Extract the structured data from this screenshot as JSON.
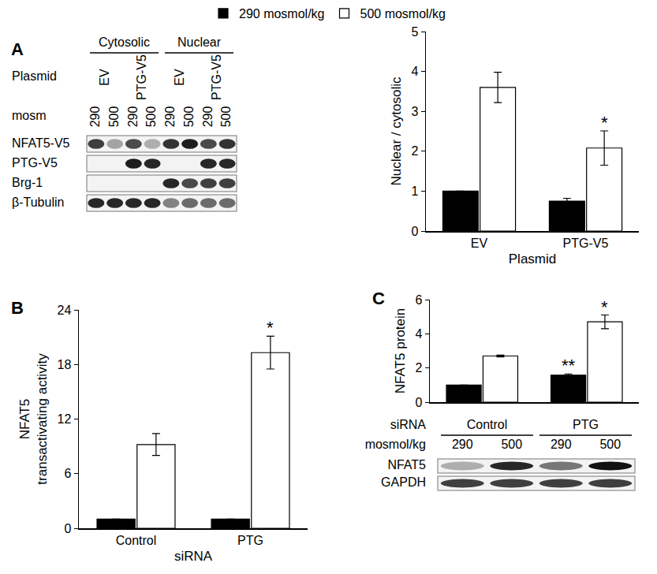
{
  "chart_data": [
    {
      "panel": "A",
      "type": "bar",
      "grid": false,
      "categories": [
        "EV",
        "PTG-V5"
      ],
      "x_label": "Plasmid",
      "y_label": "Nuclear / cytosolic",
      "ylim": [
        0,
        5
      ],
      "yticks": [
        0,
        1,
        2,
        3,
        4,
        5
      ],
      "series": [
        {
          "name": "290 mosmol/kg",
          "color": "#000000",
          "values": [
            1,
            0.75
          ],
          "errors": [
            0,
            0.07
          ]
        },
        {
          "name": "500 mosmol/kg",
          "color": "#ffffff",
          "values": [
            3.6,
            2.08
          ],
          "errors": [
            0.38,
            0.43
          ]
        }
      ],
      "annotations": [
        {
          "text": "*",
          "series": "500 mosmol/kg",
          "category": "PTG-V5"
        }
      ]
    },
    {
      "panel": "B",
      "type": "bar",
      "grid": false,
      "categories": [
        "Control",
        "PTG"
      ],
      "x_label": "siRNA",
      "y_label": [
        "NFAT5",
        "transactivating activity"
      ],
      "ylim": [
        0,
        24
      ],
      "yticks": [
        0,
        6,
        12,
        18,
        24
      ],
      "series": [
        {
          "name": "290 mosmol/kg",
          "color": "#000000",
          "values": [
            1,
            1
          ],
          "errors": [
            0,
            0
          ]
        },
        {
          "name": "500 mosmol/kg",
          "color": "#ffffff",
          "values": [
            9.2,
            19.3
          ],
          "errors": [
            1.2,
            1.8
          ]
        }
      ],
      "annotations": [
        {
          "text": "*",
          "series": "500 mosmol/kg",
          "category": "PTG"
        }
      ]
    },
    {
      "panel": "C",
      "type": "bar",
      "grid": false,
      "tick_labels": "y",
      "categories": [
        "Control",
        "PTG"
      ],
      "y_label": "NFAT5 protein",
      "ylim": [
        0,
        6
      ],
      "yticks": [
        0,
        2,
        4,
        6
      ],
      "series": [
        {
          "name": "290 mosmol/kg",
          "color": "#000000",
          "values": [
            1,
            1.58
          ],
          "errors": [
            0,
            0.07
          ]
        },
        {
          "name": "500 mosmol/kg",
          "color": "#ffffff",
          "values": [
            2.7,
            4.7
          ],
          "errors": [
            0.05,
            0.4
          ]
        }
      ],
      "annotations": [
        {
          "text": "**",
          "series": "290 mosmol/kg",
          "category": "PTG"
        },
        {
          "text": "*",
          "series": "500 mosmol/kg",
          "category": "PTG"
        }
      ]
    }
  ],
  "blots": [
    {
      "panel": "A",
      "headers": [
        {
          "values": [
            "Cytosolic",
            "Nuclear"
          ]
        },
        {
          "label": "Plasmid",
          "values": [
            "EV",
            "PTG-V5",
            "EV",
            "PTG-V5"
          ]
        },
        {
          "label": "mosm",
          "values": [
            290,
            500,
            290,
            500,
            290,
            500,
            290,
            500
          ]
        }
      ],
      "rows": [
        {
          "label": "NFAT5-V5",
          "bands": [
            0.8,
            0.35,
            0.75,
            0.3,
            0.85,
            0.95,
            0.75,
            0.85
          ]
        },
        {
          "label": "PTG-V5",
          "bands": [
            0,
            0,
            0.95,
            0.9,
            0,
            0,
            0.9,
            0.9
          ]
        },
        {
          "label": "Brg-1",
          "bands": [
            0,
            0,
            0,
            0,
            0.9,
            0.75,
            0.8,
            0.8
          ]
        },
        {
          "label": "β-Tubulin",
          "bands": [
            0.9,
            0.9,
            0.9,
            0.9,
            0.5,
            0.6,
            0.6,
            0.6
          ]
        }
      ]
    },
    {
      "panel": "C",
      "headers": [
        {
          "label": "siRNA",
          "values": [
            "Control",
            "PTG"
          ]
        },
        {
          "label": "mosmol/kg",
          "values": [
            290,
            500,
            290,
            500
          ]
        }
      ],
      "rows": [
        {
          "label": "NFAT5",
          "bands": [
            0.3,
            0.9,
            0.55,
            1.0
          ]
        },
        {
          "label": "GAPDH",
          "bands": [
            0.8,
            0.8,
            0.8,
            0.8
          ]
        }
      ]
    }
  ]
}
